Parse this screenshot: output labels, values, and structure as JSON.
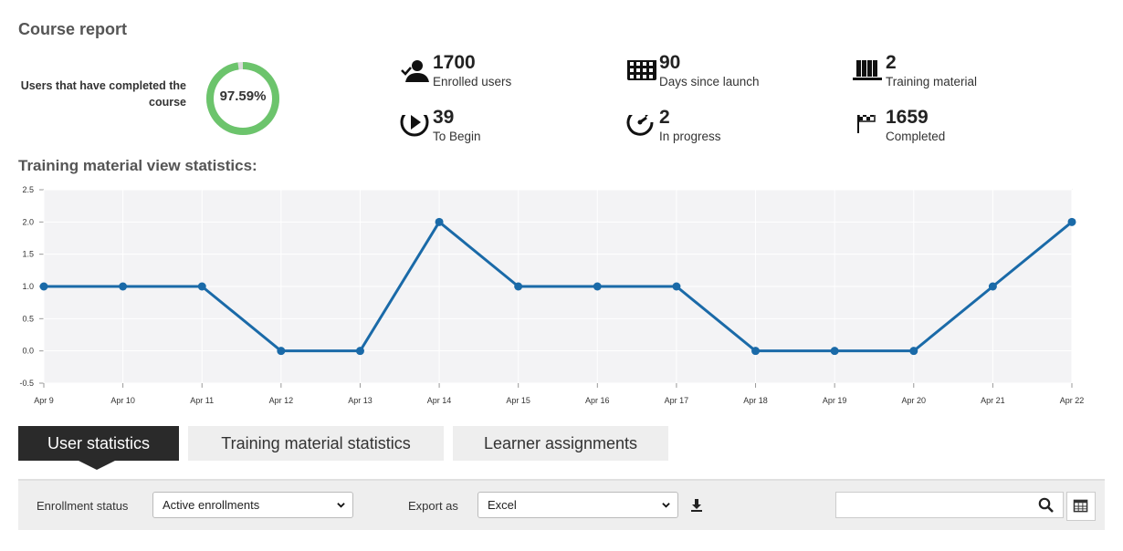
{
  "page": {
    "title": "Course report"
  },
  "completion": {
    "label": "Users that have completed the course",
    "percent_text": "97.59%",
    "fraction": 0.9759,
    "color": "#6cc46c"
  },
  "stats": {
    "enrolled": {
      "value": "1700",
      "label": "Enrolled users",
      "icon": "user-check-icon"
    },
    "days": {
      "value": "90",
      "label": "Days since launch",
      "icon": "calendar-icon"
    },
    "training": {
      "value": "2",
      "label": "Training material",
      "icon": "books-icon"
    },
    "to_begin": {
      "value": "39",
      "label": "To Begin",
      "icon": "play-icon"
    },
    "in_progress": {
      "value": "2",
      "label": "In progress",
      "icon": "clock-refresh-icon"
    },
    "completed": {
      "value": "1659",
      "label": "Completed",
      "icon": "checkered-flag-icon"
    }
  },
  "section": {
    "title": "Training material view statistics:"
  },
  "chart_data": {
    "type": "line",
    "x": [
      "Apr 9",
      "Apr 10",
      "Apr 11",
      "Apr 12",
      "Apr 13",
      "Apr 14",
      "Apr 15",
      "Apr 16",
      "Apr 17",
      "Apr 18",
      "Apr 19",
      "Apr 20",
      "Apr 21",
      "Apr 22"
    ],
    "series": [
      {
        "values": [
          1,
          1,
          1,
          0,
          0,
          2,
          1,
          1,
          1,
          0,
          0,
          0,
          1,
          2
        ]
      }
    ],
    "yticks": [
      "2.5",
      "2.0",
      "1.5",
      "1.0",
      "0.5",
      "0.0",
      "-0.5"
    ],
    "ylim": [
      -0.5,
      2.5
    ],
    "grid": true,
    "line_color": "#1a6aa8",
    "plot_background": "#f3f3f5"
  },
  "tabs": [
    {
      "label": "User statistics",
      "active": true
    },
    {
      "label": "Training material statistics",
      "active": false
    },
    {
      "label": "Learner assignments",
      "active": false
    }
  ],
  "toolbar": {
    "enrollment_label": "Enrollment status",
    "enrollment_value": "Active enrollments",
    "export_label": "Export as",
    "export_value": "Excel",
    "search_placeholder": ""
  }
}
